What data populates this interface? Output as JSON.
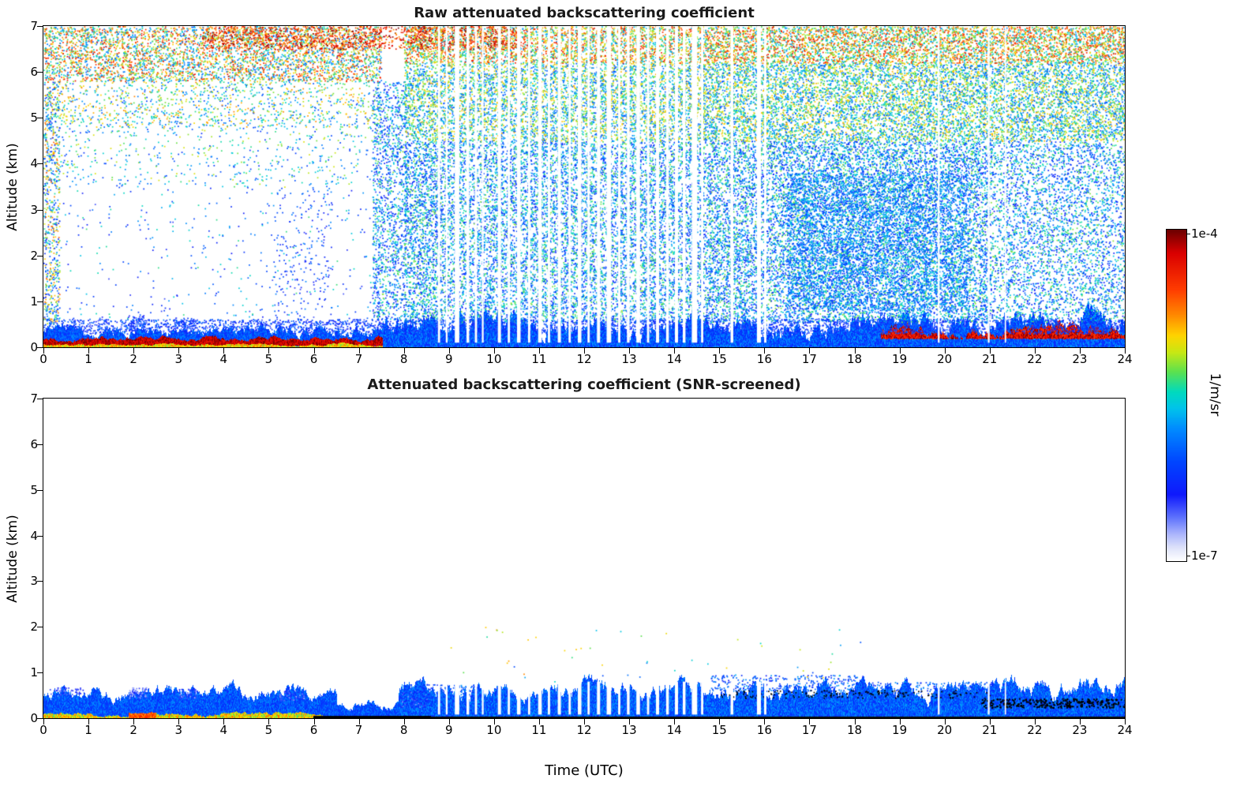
{
  "colorbar": {
    "max_label": "1e-4",
    "min_label": "1e-7",
    "units": "1/m/sr",
    "colormap": "jet-like with white minimum",
    "stops": [
      [
        0.0,
        255,
        255,
        255
      ],
      [
        0.04,
        222,
        226,
        250
      ],
      [
        0.08,
        172,
        182,
        252
      ],
      [
        0.13,
        95,
        115,
        252
      ],
      [
        0.2,
        15,
        25,
        252
      ],
      [
        0.3,
        0,
        70,
        255
      ],
      [
        0.4,
        0,
        140,
        255
      ],
      [
        0.46,
        0,
        195,
        235
      ],
      [
        0.51,
        0,
        218,
        190
      ],
      [
        0.57,
        90,
        225,
        80
      ],
      [
        0.63,
        200,
        232,
        20
      ],
      [
        0.68,
        255,
        212,
        0
      ],
      [
        0.74,
        255,
        140,
        0
      ],
      [
        0.82,
        255,
        60,
        0
      ],
      [
        0.93,
        218,
        0,
        0
      ],
      [
        1.0,
        108,
        0,
        0
      ]
    ]
  },
  "chart_data": [
    {
      "type": "heatmap",
      "title": "Raw attenuated backscattering coefficient",
      "xlabel": "",
      "ylabel": "Altitude (km)",
      "xlim": [
        0,
        24
      ],
      "ylim": [
        0,
        7
      ],
      "xticks": [
        0,
        1,
        2,
        3,
        4,
        5,
        6,
        7,
        8,
        9,
        10,
        11,
        12,
        13,
        14,
        15,
        16,
        17,
        18,
        19,
        20,
        21,
        22,
        23,
        24
      ],
      "yticks": [
        0,
        1,
        2,
        3,
        4,
        5,
        6,
        7
      ],
      "value_min": "1e-7",
      "value_max": "1e-4",
      "value_units": "1/m/sr",
      "features": [
        "background noise speckle increasing toward 7 km, orange-red near top",
        "clear white region 0.5-5.5 km before 07:30 UTC",
        "dense noise field after 08:00 UTC at all altitudes",
        "strong dark-red aerosol layer near 0.1 km from 00:00 to 07:30",
        "dense blue boundary layer below 0.5 km all day",
        "red layer near 0.3 km from 18:40 to 24:00",
        "white vertical data-gap stripes mainly between 08:45 and 16:00"
      ],
      "seed": 42,
      "gap_z": [
        0.1,
        7
      ],
      "gaps": [
        [
          8.78,
          0.05
        ],
        [
          8.95,
          0.04
        ],
        [
          9.18,
          0.1
        ],
        [
          9.42,
          0.06
        ],
        [
          9.6,
          0.05
        ],
        [
          9.75,
          0.04
        ],
        [
          10.12,
          0.07
        ],
        [
          10.33,
          0.05
        ],
        [
          10.55,
          0.08
        ],
        [
          10.78,
          0.05
        ],
        [
          11.02,
          0.08
        ],
        [
          11.22,
          0.05
        ],
        [
          11.45,
          0.07
        ],
        [
          11.68,
          0.05
        ],
        [
          11.9,
          0.08
        ],
        [
          12.1,
          0.05
        ],
        [
          12.32,
          0.07
        ],
        [
          12.55,
          0.1
        ],
        [
          12.78,
          0.05
        ],
        [
          12.98,
          0.06
        ],
        [
          13.2,
          0.08
        ],
        [
          13.42,
          0.05
        ],
        [
          13.63,
          0.07
        ],
        [
          13.85,
          0.06
        ],
        [
          14.05,
          0.07
        ],
        [
          14.22,
          0.06
        ],
        [
          14.45,
          0.12
        ],
        [
          14.62,
          0.05
        ],
        [
          15.28,
          0.06
        ],
        [
          15.88,
          0.09
        ],
        [
          16.02,
          0.05
        ],
        [
          19.87,
          0.04
        ],
        [
          20.98,
          0.04
        ],
        [
          21.35,
          0.03
        ]
      ],
      "layers": [
        {
          "t": [
            0,
            7.6
          ],
          "z": [
            0.02,
            0.33
          ],
          "vr": [
            0.24,
            0.4
          ],
          "jitter": 0.05
        },
        {
          "t": [
            0,
            7.6
          ],
          "z": [
            0.04,
            0.18
          ],
          "vr": [
            0.88,
            1.0
          ],
          "jitter": 0.02
        },
        {
          "t": [
            0,
            7.6
          ],
          "z": [
            0,
            0.045
          ],
          "vr": [
            0.58,
            0.78
          ],
          "jitter": 0.01
        },
        {
          "t": [
            7.55,
            24
          ],
          "z": [
            0,
            0.5
          ],
          "vr": [
            0.22,
            0.42
          ],
          "jitter": 0.09
        },
        {
          "t": [
            18.6,
            24
          ],
          "z": [
            0.2,
            0.36
          ],
          "vr": [
            0.82,
            1.0
          ],
          "jitter": 0.05
        }
      ],
      "speckle": [
        {
          "t": [
            0,
            7.5
          ],
          "z": [
            5.8,
            7
          ],
          "density": 0.42,
          "vr": [
            0.33,
            0.9
          ]
        },
        {
          "t": [
            0,
            7.5
          ],
          "z": [
            4.8,
            5.8
          ],
          "density": 0.14,
          "vr": [
            0.28,
            0.75
          ]
        },
        {
          "t": [
            0,
            7.5
          ],
          "z": [
            3.5,
            4.8
          ],
          "density": 0.05,
          "vr": [
            0.25,
            0.65
          ]
        },
        {
          "t": [
            0,
            7.5
          ],
          "z": [
            0.6,
            3.5
          ],
          "density": 0.015,
          "vr": [
            0.15,
            0.55
          ]
        },
        {
          "t": [
            0,
            0.35
          ],
          "z": [
            0.5,
            5.8
          ],
          "density": 0.3,
          "vr": [
            0.2,
            0.8
          ]
        },
        {
          "t": [
            5.1,
            6.4
          ],
          "z": [
            0.7,
            3.5
          ],
          "density": 0.05,
          "vr": [
            0.15,
            0.4
          ]
        },
        {
          "t": [
            7.3,
            8.05
          ],
          "z": [
            0.6,
            5.8
          ],
          "density": 0.3,
          "vr": [
            0.15,
            0.6
          ]
        },
        {
          "t": [
            8,
            21
          ],
          "z": [
            0.55,
            4.5
          ],
          "density": 0.42,
          "vr": [
            0.2,
            0.6
          ]
        },
        {
          "t": [
            21,
            24
          ],
          "z": [
            0.55,
            4.5
          ],
          "density": 0.28,
          "vr": [
            0.2,
            0.6
          ]
        },
        {
          "t": [
            8,
            24
          ],
          "z": [
            4.5,
            6.2
          ],
          "density": 0.48,
          "vr": [
            0.3,
            0.72
          ]
        },
        {
          "t": [
            8,
            24
          ],
          "z": [
            6.2,
            7
          ],
          "density": 0.58,
          "vr": [
            0.4,
            0.9
          ]
        },
        {
          "t": [
            3.5,
            10.5
          ],
          "z": [
            6.5,
            7
          ],
          "density": 0.32,
          "vr": [
            0.7,
            1.0
          ]
        },
        {
          "t": [
            16.5,
            20.5
          ],
          "z": [
            0.8,
            3.8
          ],
          "density": 0.3,
          "vr": [
            0.25,
            0.5
          ]
        },
        {
          "t": [
            1.85,
            2.25
          ],
          "z": [
            0.45,
            0.7
          ],
          "density": 0.5,
          "vr": [
            0.15,
            0.35
          ]
        },
        {
          "t": [
            2.9,
            3.35
          ],
          "z": [
            0.45,
            0.65
          ],
          "density": 0.4,
          "vr": [
            0.15,
            0.35
          ]
        },
        {
          "t": [
            0,
            24
          ],
          "z": [
            0.3,
            0.62
          ],
          "density": 0.45,
          "vr": [
            0.15,
            0.38
          ]
        }
      ]
    },
    {
      "type": "heatmap",
      "title": "Attenuated backscattering coefficient (SNR-screened)",
      "xlabel": "Time (UTC)",
      "ylabel": "Altitude (km)",
      "xlim": [
        0,
        24
      ],
      "ylim": [
        0,
        7
      ],
      "xticks": [
        0,
        1,
        2,
        3,
        4,
        5,
        6,
        7,
        8,
        9,
        10,
        11,
        12,
        13,
        14,
        15,
        16,
        17,
        18,
        19,
        20,
        21,
        22,
        23,
        24
      ],
      "yticks": [
        0,
        1,
        2,
        3,
        4,
        5,
        6,
        7
      ],
      "value_min": "1e-7",
      "value_max": "1e-4",
      "value_units": "1/m/sr",
      "features": [
        "noise removed: white above ~1 km",
        "blue boundary layer below ~0.6 km all day",
        "green-yellow surface layer 00:00-06:00, black surface echo after 06:00",
        "black cloud-base speckle 15:00-24:00 near 0.3-0.6 km",
        "same white data-gap stripes between 08:45 and 16:00"
      ],
      "seed": 1337,
      "gap_z": [
        0.08,
        0.8
      ],
      "gaps": [
        [
          8.78,
          0.05
        ],
        [
          8.95,
          0.04
        ],
        [
          9.18,
          0.1
        ],
        [
          9.42,
          0.06
        ],
        [
          9.6,
          0.05
        ],
        [
          9.75,
          0.04
        ],
        [
          10.12,
          0.07
        ],
        [
          10.33,
          0.05
        ],
        [
          10.55,
          0.08
        ],
        [
          10.78,
          0.05
        ],
        [
          11.02,
          0.08
        ],
        [
          11.22,
          0.05
        ],
        [
          11.45,
          0.07
        ],
        [
          11.68,
          0.05
        ],
        [
          11.9,
          0.08
        ],
        [
          12.1,
          0.05
        ],
        [
          12.32,
          0.07
        ],
        [
          12.55,
          0.1
        ],
        [
          12.78,
          0.05
        ],
        [
          12.98,
          0.06
        ],
        [
          13.2,
          0.08
        ],
        [
          13.42,
          0.05
        ],
        [
          13.63,
          0.07
        ],
        [
          13.85,
          0.06
        ],
        [
          14.05,
          0.07
        ],
        [
          14.22,
          0.06
        ],
        [
          14.45,
          0.12
        ],
        [
          14.62,
          0.05
        ],
        [
          15.28,
          0.06
        ],
        [
          15.88,
          0.09
        ],
        [
          16.02,
          0.05
        ],
        [
          19.87,
          0.04
        ],
        [
          20.98,
          0.04
        ],
        [
          21.35,
          0.03
        ]
      ],
      "layers": [
        {
          "t": [
            0,
            6.5
          ],
          "z": [
            0,
            0.52
          ],
          "vr": [
            0.24,
            0.4
          ],
          "jitter": 0.06
        },
        {
          "t": [
            6.5,
            7.9
          ],
          "z": [
            0,
            0.3
          ],
          "vr": [
            0.24,
            0.38
          ],
          "jitter": 0.04
        },
        {
          "t": [
            7.9,
            24
          ],
          "z": [
            0,
            0.62
          ],
          "vr": [
            0.24,
            0.42
          ],
          "jitter": 0.08
        },
        {
          "t": [
            0,
            6.2
          ],
          "z": [
            0,
            0.07
          ],
          "vr": [
            0.55,
            0.78
          ],
          "jitter": 0.015
        },
        {
          "t": [
            1.9,
            2.5
          ],
          "z": [
            0,
            0.1
          ],
          "vr": [
            0.72,
            0.88
          ],
          "jitter": 0.01
        },
        {
          "t": [
            6.0,
            8.6
          ],
          "z": [
            0,
            0.05
          ],
          "color": "#000000"
        },
        {
          "t": [
            8.6,
            24
          ],
          "z": [
            0,
            0.035
          ],
          "color": "#0a0a0a"
        }
      ],
      "speckle": [
        {
          "t": [
            8,
            9.6
          ],
          "z": [
            0.3,
            0.75
          ],
          "density": 0.35,
          "vr": [
            0.2,
            0.42
          ]
        },
        {
          "t": [
            14.8,
            18.2
          ],
          "z": [
            0.6,
            0.95
          ],
          "density": 0.25,
          "vr": [
            0.2,
            0.42
          ]
        },
        {
          "t": [
            18.2,
            21.2
          ],
          "z": [
            0.55,
            0.8
          ],
          "density": 0.2,
          "vr": [
            0.2,
            0.42
          ]
        },
        {
          "t": [
            9,
            18.5
          ],
          "z": [
            0.8,
            2.0
          ],
          "density": 0.004,
          "vr": [
            0.3,
            0.75
          ]
        },
        {
          "t": [
            15,
            21
          ],
          "z": [
            0.45,
            0.62
          ],
          "density": 0.15,
          "color": "#000000"
        },
        {
          "t": [
            20.8,
            24
          ],
          "z": [
            0.24,
            0.44
          ],
          "density": 0.55,
          "color": "#000000",
          "size": 2
        },
        {
          "t": [
            1.9,
            2.3
          ],
          "z": [
            0.45,
            0.68
          ],
          "density": 0.5,
          "vr": [
            0.08,
            0.2
          ]
        },
        {
          "t": [
            3.0,
            3.4
          ],
          "z": [
            0.45,
            0.65
          ],
          "density": 0.4,
          "vr": [
            0.08,
            0.2
          ]
        },
        {
          "t": [
            0.1,
            0.9
          ],
          "z": [
            0.5,
            0.68
          ],
          "density": 0.3,
          "vr": [
            0.1,
            0.22
          ]
        },
        {
          "t": [
            5.2,
            5.8
          ],
          "z": [
            0.4,
            0.62
          ],
          "density": 0.3,
          "vr": [
            0.08,
            0.2
          ]
        },
        {
          "t": [
            7.9,
            8.5
          ],
          "z": [
            0.25,
            0.6
          ],
          "density": 0.4,
          "vr": [
            0.1,
            0.3
          ]
        }
      ]
    }
  ]
}
